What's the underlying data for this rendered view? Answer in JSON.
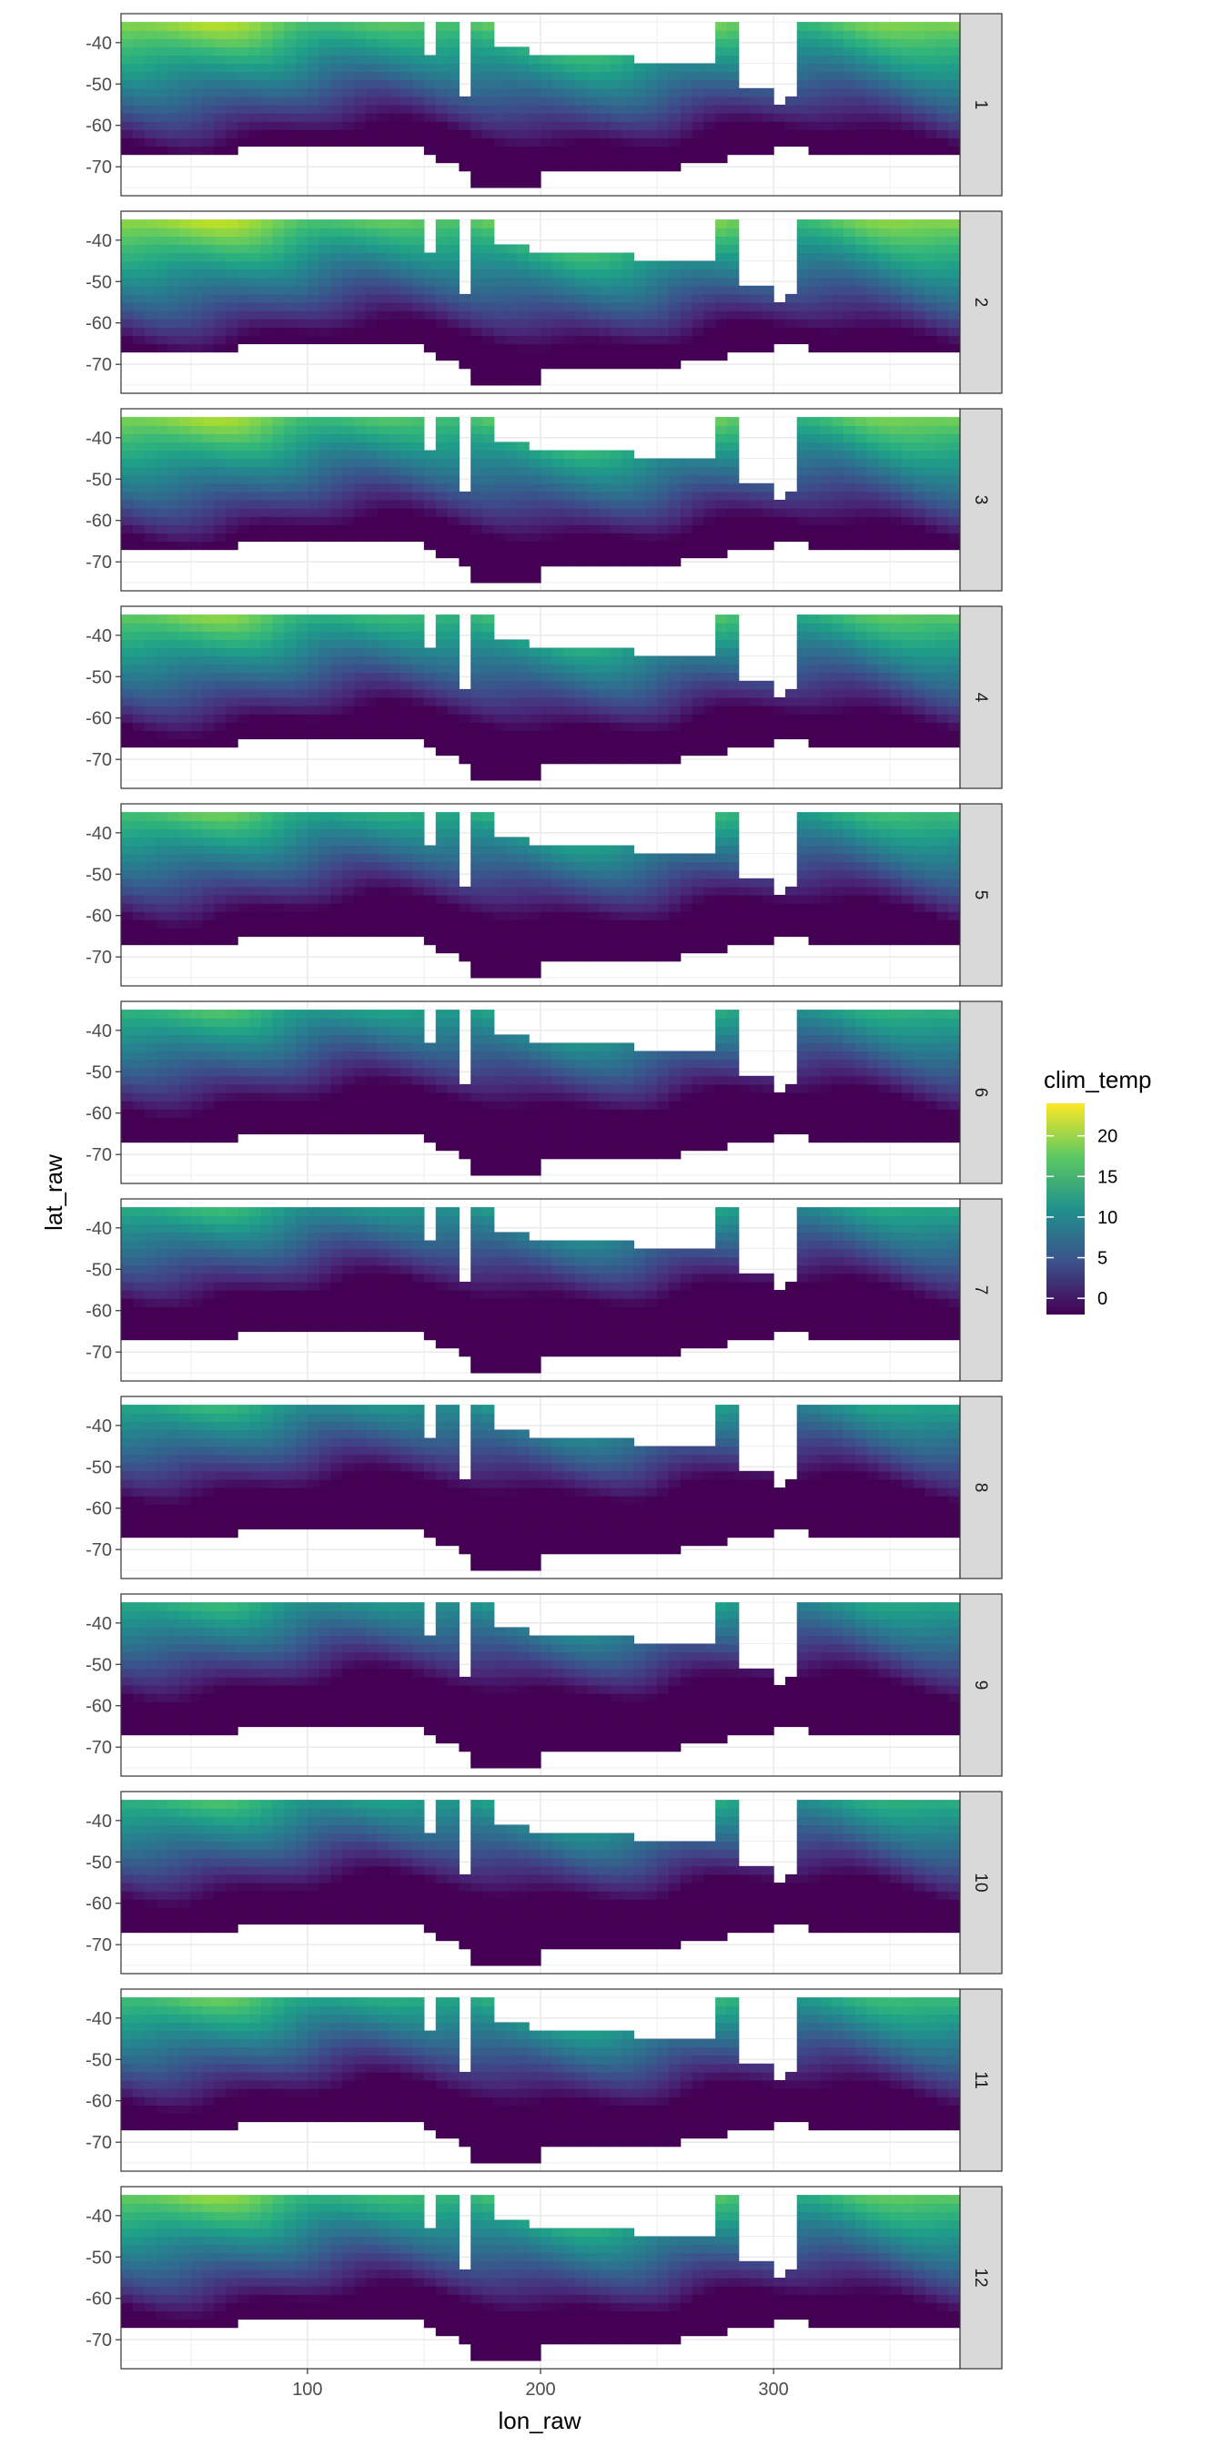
{
  "chart_data": {
    "type": "heatmap",
    "xlabel": "lon_raw",
    "ylabel": "lat_raw",
    "x_ticks": [
      100,
      200,
      300
    ],
    "y_ticks": [
      -40,
      -50,
      -60,
      -70
    ],
    "x_range": [
      20,
      380
    ],
    "y_range": [
      -77,
      -33
    ],
    "grid": true,
    "facets": [
      "1",
      "2",
      "3",
      "4",
      "5",
      "6",
      "7",
      "8",
      "9",
      "10",
      "11",
      "12"
    ],
    "facet_strip_position": "right",
    "legend": {
      "title": "clim_temp",
      "position": "right",
      "breaks": [
        20,
        15,
        10,
        5,
        0
      ],
      "range": [
        -2,
        24
      ],
      "palette": [
        "#440154",
        "#3b528b",
        "#21918c",
        "#5ec962",
        "#fde725"
      ]
    },
    "facet_temperature_offset": [
      5.0,
      5.4,
      4.6,
      3.4,
      2.0,
      0.6,
      -0.4,
      -0.8,
      -0.6,
      0.4,
      1.8,
      3.6
    ]
  }
}
